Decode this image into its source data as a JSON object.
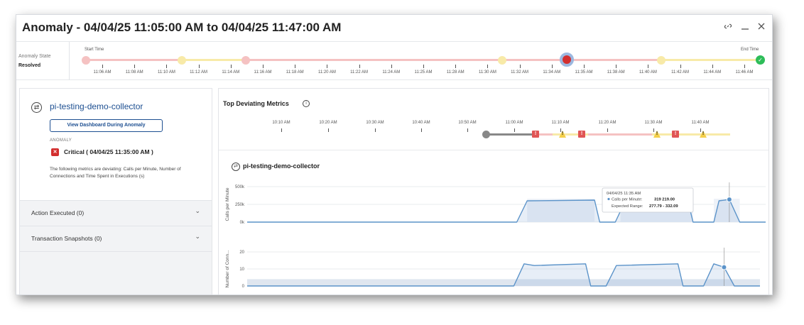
{
  "window": {
    "title": "Anomaly - 04/04/25 11:05:00 AM to 04/04/25 11:47:00 AM",
    "link_icon": "link-icon",
    "minimize_icon": "minimize-icon",
    "close_icon": "close-icon"
  },
  "timeline": {
    "state_label": "Anomaly State",
    "state_value": "Resolved",
    "start_label": "Start Time",
    "end_label": "End Time",
    "ticks": [
      "11:06 AM",
      "11:08 AM",
      "11:10 AM",
      "11:12 AM",
      "11:14 AM",
      "11:16 AM",
      "11:18 AM",
      "11:20 AM",
      "11:22 AM",
      "11:24 AM",
      "11:25 AM",
      "11:28 AM",
      "11:30 AM",
      "11:32 AM",
      "11:34 AM",
      "11:35 AM",
      "11:38 AM",
      "11:40 AM",
      "11:42 AM",
      "11:44 AM",
      "11:46 AM"
    ],
    "colors": {
      "critical": "#f5c2c2",
      "warning": "#f8eaa8",
      "selected": "#d32f2f",
      "resolved": "#2ebd59"
    }
  },
  "left": {
    "collector_name": "pi-testing-demo-collector",
    "dashboard_button": "View Dashboard During Anomaly",
    "anomaly_label": "ANOMALY",
    "severity": "Critical ( 04/04/25 11:35:00 AM )",
    "description": "The following metrics are deviating: Calls per Minute, Number of Connections and Time Spent in Executions (s)",
    "accordions": [
      {
        "label": "Action Executed (0)"
      },
      {
        "label": "Transaction Snapshots (0)"
      }
    ]
  },
  "right": {
    "title": "Top Deviating Metrics",
    "mini_ticks": [
      "10:10 AM",
      "10:20 AM",
      "10:30 AM",
      "10:40 AM",
      "10:50 AM",
      "11:00 AM",
      "11:10 AM",
      "11:20 AM",
      "11:30 AM",
      "11:40 AM"
    ],
    "collector_name": "pi-testing-demo-collector",
    "tooltip": {
      "time": "04/04/25 11:35 AM",
      "calls_label": "Calls per Minute:",
      "calls_value": "319 219.00",
      "range_label": "Expected Range:",
      "range_value": "277.79 - 332.09"
    }
  },
  "chart_data": [
    {
      "type": "area",
      "ylabel": "Calls per Minute",
      "y_ticks": [
        "500k",
        "250k",
        "0k"
      ],
      "ylim": [
        0,
        500000
      ],
      "x_range": [
        0,
        100
      ],
      "series": [
        {
          "values": [
            [
              0,
              0
            ],
            [
              19,
              0
            ],
            [
              20,
              0
            ],
            [
              52,
              0
            ],
            [
              54,
              300000
            ],
            [
              67,
              310000
            ],
            [
              68,
              0
            ],
            [
              71,
              0
            ],
            [
              73,
              310000
            ],
            [
              85,
              300000
            ],
            [
              86,
              0
            ],
            [
              90,
              0
            ],
            [
              91,
              300000
            ],
            [
              93,
              319219
            ],
            [
              95,
              0
            ],
            [
              100,
              0
            ]
          ]
        }
      ],
      "expected_band": [
        [
          54,
          310000
        ],
        [
          66,
          310000
        ],
        [
          72,
          310000
        ],
        [
          86,
          310000
        ]
      ]
    },
    {
      "type": "area",
      "ylabel": "Number of Conn...",
      "y_ticks": [
        "20",
        "10",
        "0"
      ],
      "ylim": [
        0,
        20
      ],
      "x_range": [
        0,
        100
      ],
      "series": [
        {
          "values": [
            [
              0,
              0
            ],
            [
              52,
              0
            ],
            [
              54,
              13
            ],
            [
              56,
              12
            ],
            [
              66,
              13
            ],
            [
              67,
              0
            ],
            [
              70,
              0
            ],
            [
              72,
              12
            ],
            [
              84,
              13
            ],
            [
              85,
              0
            ],
            [
              89,
              0
            ],
            [
              91,
              13
            ],
            [
              93,
              11
            ],
            [
              95,
              0
            ],
            [
              100,
              0
            ]
          ]
        }
      ]
    }
  ]
}
